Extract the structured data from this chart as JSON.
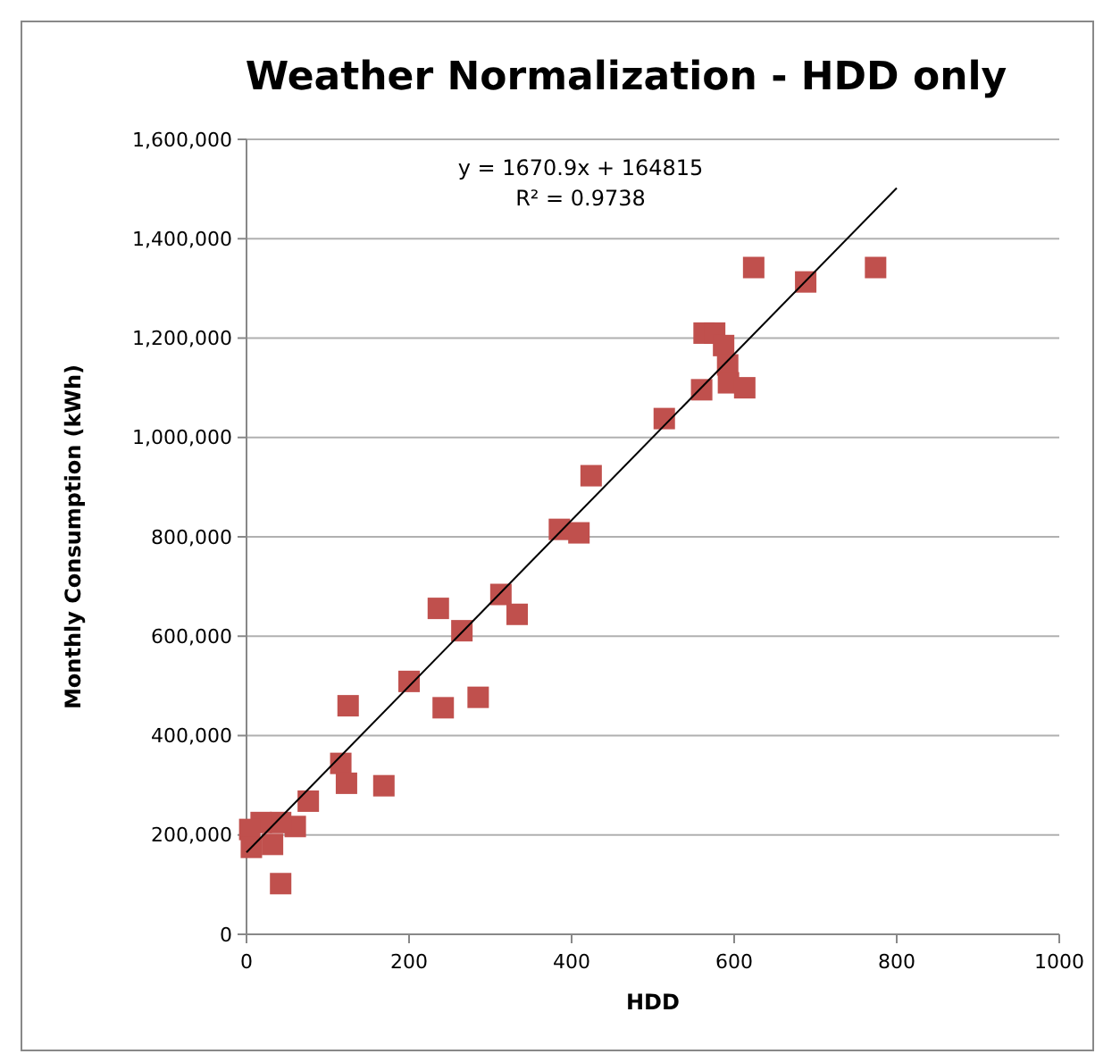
{
  "chart_data": {
    "type": "scatter",
    "title": "Weather Normalization  - HDD only",
    "xlabel": "HDD",
    "ylabel": "Monthly Consumption (kWh)",
    "annotations": [
      "y = 1670.9x + 164815",
      "R² = 0.9738"
    ],
    "xlim": [
      0,
      1000
    ],
    "xticks": [
      0,
      200,
      400,
      600,
      800,
      1000
    ],
    "ylim": [
      0,
      1600000
    ],
    "yticks": [
      {
        "value": 0,
        "label": "0"
      },
      {
        "value": 200000,
        "label": "200,000"
      },
      {
        "value": 400000,
        "label": "400,000"
      },
      {
        "value": 600000,
        "label": "600,000"
      },
      {
        "value": 800000,
        "label": "800,000"
      },
      {
        "value": 1000000,
        "label": "1,000,000"
      },
      {
        "value": 1200000,
        "label": "1,200,000"
      },
      {
        "value": 1400000,
        "label": "1,400,000"
      },
      {
        "value": 1600000,
        "label": "1,600,000"
      }
    ],
    "grid": "y",
    "series": [
      {
        "color": "#c0504d",
        "marker": "square",
        "x": [
          624,
          688,
          774,
          563,
          576,
          587,
          592,
          593,
          613,
          560,
          514,
          424,
          385,
          409,
          313,
          333,
          236,
          265,
          200,
          125,
          242,
          285,
          116,
          123,
          169,
          76,
          60,
          42,
          18,
          4,
          6,
          32,
          42
        ],
        "values": [
          1342000,
          1313000,
          1342000,
          1210000,
          1210000,
          1185000,
          1146000,
          1110000,
          1100000,
          1096000,
          1038000,
          923000,
          815000,
          808000,
          684000,
          644000,
          656000,
          611000,
          509000,
          460000,
          456000,
          477000,
          344000,
          304000,
          299000,
          268000,
          217000,
          225000,
          225000,
          211000,
          175000,
          181000,
          102000
        ]
      },
      {
        "type": "line",
        "color": "#000000",
        "marker": "none",
        "x": [
          0,
          800
        ],
        "values": [
          165000,
          1502000
        ]
      }
    ]
  }
}
